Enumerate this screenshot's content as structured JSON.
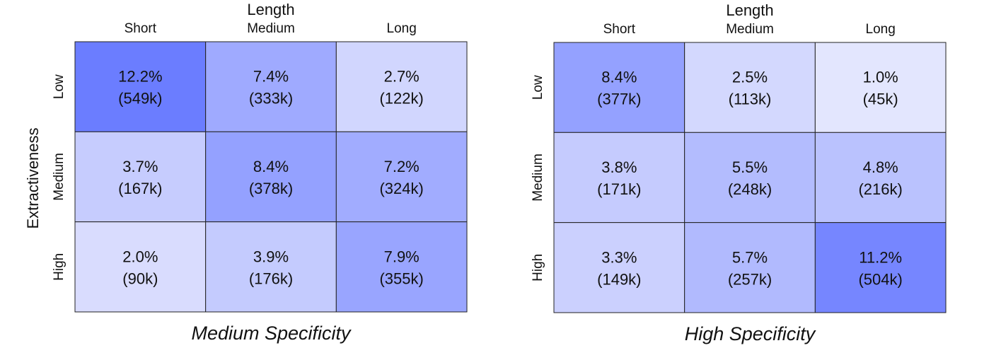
{
  "figure": {
    "ylabel": "Extractiveness"
  },
  "chart_data": [
    {
      "type": "heatmap",
      "title": "Medium Specificity",
      "xlabel": "Length",
      "ylabel": "Extractiveness",
      "x_categories": [
        "Short",
        "Medium",
        "Long"
      ],
      "y_categories": [
        "Low",
        "Medium",
        "High"
      ],
      "values": [
        [
          12.2,
          7.4,
          2.7
        ],
        [
          3.7,
          8.4,
          7.2
        ],
        [
          2.0,
          3.9,
          7.9
        ]
      ],
      "value_labels": [
        [
          "12.2%",
          "7.4%",
          "2.7%"
        ],
        [
          "3.7%",
          "8.4%",
          "7.2%"
        ],
        [
          "2.0%",
          "3.9%",
          "7.9%"
        ]
      ],
      "count_labels": [
        [
          "(549k)",
          "(333k)",
          "(122k)"
        ],
        [
          "(167k)",
          "(378k)",
          "(324k)"
        ],
        [
          "(90k)",
          "(176k)",
          "(355k)"
        ]
      ],
      "colors": {
        "low": "#eeeffe",
        "high": "#6b7dff"
      }
    },
    {
      "type": "heatmap",
      "title": "High Specificity",
      "xlabel": "Length",
      "ylabel": "",
      "x_categories": [
        "Short",
        "Medium",
        "Long"
      ],
      "y_categories": [
        "Low",
        "Medium",
        "High"
      ],
      "values": [
        [
          8.4,
          2.5,
          1.0
        ],
        [
          3.8,
          5.5,
          4.8
        ],
        [
          3.3,
          5.7,
          11.2
        ]
      ],
      "value_labels": [
        [
          "8.4%",
          "2.5%",
          "1.0%"
        ],
        [
          "3.8%",
          "5.5%",
          "4.8%"
        ],
        [
          "3.3%",
          "5.7%",
          "11.2%"
        ]
      ],
      "count_labels": [
        [
          "(377k)",
          "(113k)",
          "(45k)"
        ],
        [
          "(171k)",
          "(248k)",
          "(216k)"
        ],
        [
          "(149k)",
          "(257k)",
          "(504k)"
        ]
      ],
      "colors": {
        "low": "#eeeffe",
        "high": "#6b7dff"
      }
    }
  ]
}
